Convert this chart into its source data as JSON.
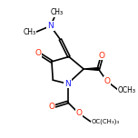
{
  "bg_color": "white",
  "bond_color": "black",
  "bond_width": 1.2,
  "atom_colors": {
    "N": "#1a1aff",
    "O": "#ff2200",
    "C": "black"
  },
  "figsize": [
    1.52,
    1.52
  ],
  "dpi": 100,
  "xlim": [
    0,
    10
  ],
  "ylim": [
    0,
    10
  ]
}
